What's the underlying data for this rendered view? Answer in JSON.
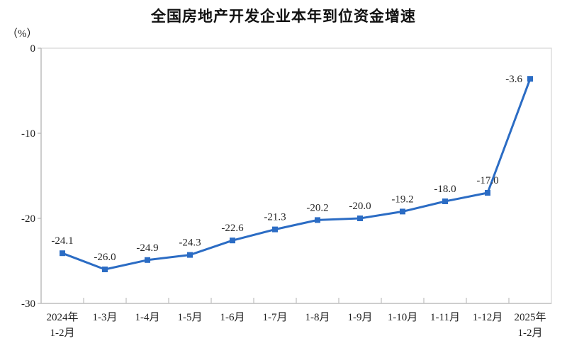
{
  "chart_data": {
    "type": "line",
    "title": "全国房地产开发企业本年到位资金增速",
    "y_unit_label": "（%）",
    "categories": [
      [
        "2024年",
        "1-2月"
      ],
      [
        "1-3月"
      ],
      [
        "1-4月"
      ],
      [
        "1-5月"
      ],
      [
        "1-6月"
      ],
      [
        "1-7月"
      ],
      [
        "1-8月"
      ],
      [
        "1-9月"
      ],
      [
        "1-10月"
      ],
      [
        "1-11月"
      ],
      [
        "1-12月"
      ],
      [
        "2025年",
        "1-2月"
      ]
    ],
    "values": [
      -24.1,
      -26.0,
      -24.9,
      -24.3,
      -22.6,
      -21.3,
      -20.2,
      -20.0,
      -19.2,
      -18.0,
      -17.0,
      -3.6
    ],
    "data_labels": [
      "-24.1",
      "-26.0",
      "-24.9",
      "-24.3",
      "-22.6",
      "-21.3",
      "-20.2",
      "-20.0",
      "-19.2",
      "-18.0",
      "-17.0",
      "-3.6"
    ],
    "ylim": [
      -30,
      0
    ],
    "y_tick_labels": [
      "0",
      "-10",
      "-20",
      "-30"
    ],
    "y_tick_values": [
      0,
      -10,
      -20,
      -30
    ],
    "grid": false,
    "legend": "none",
    "marker": "square",
    "colors": {
      "line": "#2b6cc4",
      "marker": "#2b6cc4",
      "axis": "#b8b8b8",
      "plot_border": "#d9d9d9",
      "tick": "#bdbdbd",
      "text": "#1f1f1f",
      "data_label": "#262626"
    }
  }
}
